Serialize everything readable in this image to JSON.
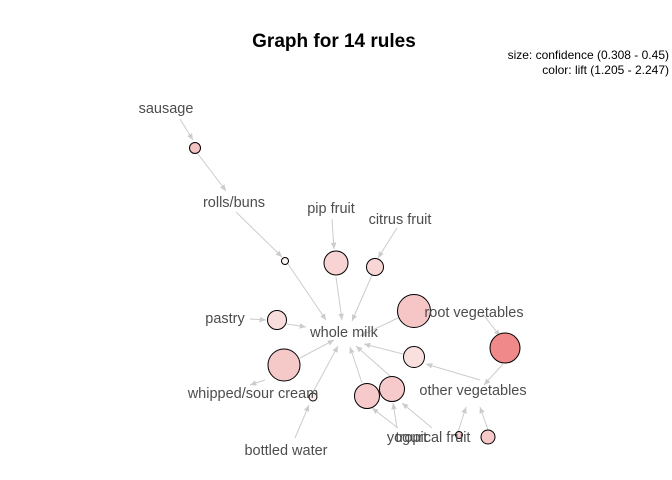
{
  "title": "Graph for 14 rules",
  "legend": {
    "size": "size: confidence (0.308 - 0.45)",
    "color": "color: lift (1.205 - 2.247)"
  },
  "items": {
    "sausage": "sausage",
    "rolls_buns": "rolls/buns",
    "pip_fruit": "pip fruit",
    "citrus_fruit": "citrus fruit",
    "pastry": "pastry",
    "whole_milk": "whole milk",
    "root_vegetables": "root vegetables",
    "whipped_sour_cream": "whipped/sour cream",
    "other_vegetables": "other vegetables",
    "bottled_water": "bottled water",
    "yogurt": "yogurt",
    "tropical_fruit": "tropical fruit"
  },
  "colors": {
    "edge": "#cccccc",
    "label": "#4d4d4d",
    "node_stroke": "#000000",
    "lift_low": "#fbeaea",
    "lift_mid": "#f7cdcd",
    "lift_high": "#f08a8a"
  }
}
